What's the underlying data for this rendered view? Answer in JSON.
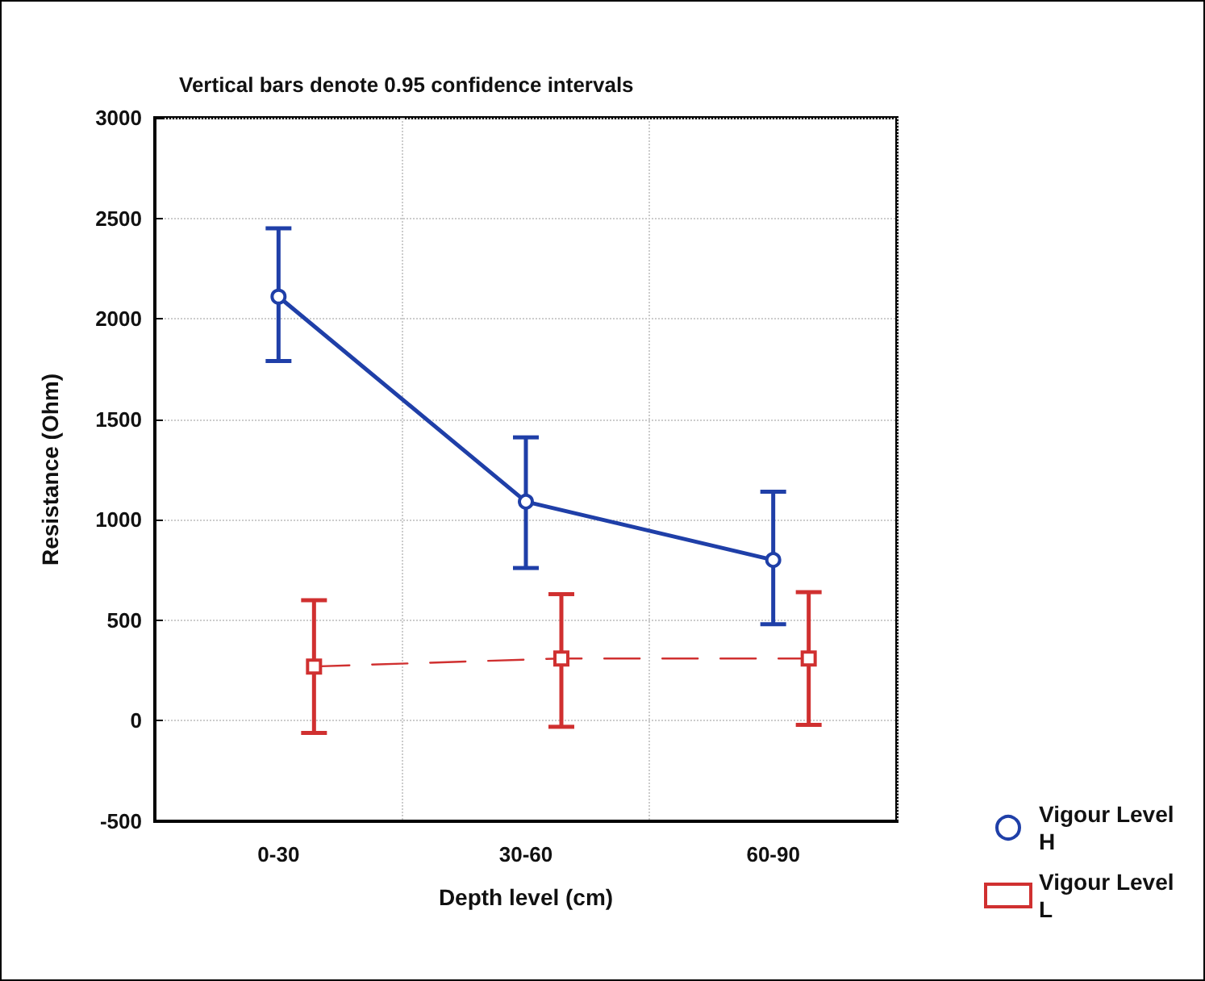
{
  "chart_data": {
    "type": "line",
    "title": "Vertical bars denote 0.95 confidence intervals",
    "xlabel": "Depth level (cm)",
    "ylabel": "Resistance (Ohm)",
    "categories": [
      "0-30",
      "30-60",
      "60-90"
    ],
    "series": [
      {
        "name": "Vigour Level H",
        "color": "#1f3fa8",
        "values": [
          2110,
          1090,
          800
        ],
        "errors": [
          [
            1790,
            2450
          ],
          [
            760,
            1410
          ],
          [
            480,
            1140
          ]
        ],
        "line_style": "solid",
        "marker": "circle"
      },
      {
        "name": "Vigour Level L",
        "color": "#d03030",
        "values": [
          270,
          310,
          310
        ],
        "errors": [
          [
            -60,
            600
          ],
          [
            -30,
            630
          ],
          [
            -20,
            640
          ]
        ],
        "line_style": "dashed",
        "marker": "square"
      }
    ],
    "ylim": [
      -500,
      3000
    ],
    "yticks": [
      -500,
      0,
      500,
      1000,
      1500,
      2000,
      2500,
      3000
    ],
    "grid": true,
    "legend": "right"
  }
}
